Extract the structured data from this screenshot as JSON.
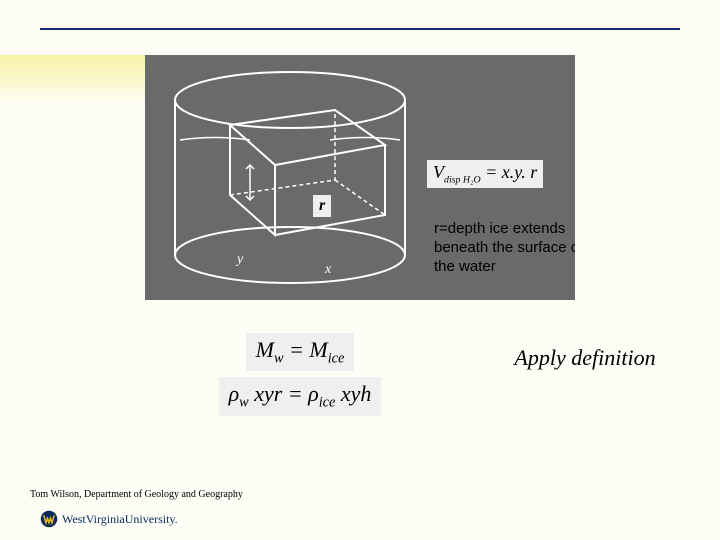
{
  "diagram": {
    "background_color": "#6a6a6a",
    "stroke_color": "#ffffff",
    "r_marker_label": "r",
    "vdisp_formula": ". r",
    "r_definition": "r=depth ice extends beneath the surface of the water"
  },
  "equations": {
    "line1_html": "M<sub>w</sub> = M<sub>ice</sub>",
    "line2_html": "ρ<sub>w</sub> xyr = ρ<sub>ice</sub> xyh",
    "caption": "Apply definition"
  },
  "footer": {
    "credit": "Tom Wilson, Department of Geology and Geography",
    "university": "WestVirginiaUniversity."
  },
  "colors": {
    "rule": "#1a2a6c",
    "page_bg": "#fdfdf5",
    "yellow_band": "#f7f3a8",
    "eq_bg": "#efefef",
    "logo_blue": "#0a2a5c",
    "logo_gold": "#e8b923"
  }
}
